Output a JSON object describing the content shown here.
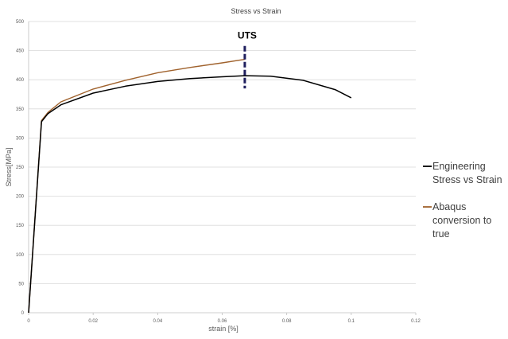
{
  "chart_data": {
    "type": "line",
    "title": "Stress vs Strain",
    "xlabel": "strain [%]",
    "ylabel": "Stress[MPa]",
    "xlim": [
      0,
      0.12
    ],
    "ylim": [
      0,
      500
    ],
    "xticks": [
      "0",
      "0.02",
      "0.04",
      "0.06",
      "0.08",
      "0.1",
      "0.12"
    ],
    "yticks": [
      "0",
      "50",
      "100",
      "150",
      "200",
      "250",
      "300",
      "350",
      "400",
      "450",
      "500"
    ],
    "grid": "horizontal",
    "legend_position": "right",
    "series": [
      {
        "name": "Engineering Stress vs Strain",
        "legend_lines": [
          "Engineering",
          "Stress vs Strain"
        ],
        "color": "#000000",
        "x": [
          0,
          0.004,
          0.006,
          0.01,
          0.02,
          0.03,
          0.04,
          0.05,
          0.06,
          0.067,
          0.075,
          0.085,
          0.095,
          0.1
        ],
        "y": [
          0,
          328,
          342,
          357,
          377,
          389,
          397,
          402,
          405,
          407,
          406,
          399,
          383,
          369
        ]
      },
      {
        "name": "Abaqus conversion to true",
        "legend_lines": [
          "Abaqus",
          "conversion to",
          "true"
        ],
        "color": "#A0622D",
        "x": [
          0,
          0.004,
          0.006,
          0.01,
          0.02,
          0.03,
          0.04,
          0.05,
          0.06,
          0.067
        ],
        "y": [
          0,
          330,
          344,
          362,
          384,
          399,
          412,
          421,
          429,
          435
        ]
      }
    ],
    "annotations": [
      {
        "text": "UTS",
        "x": 0.067,
        "y_from": 385,
        "y_to": 458,
        "line_color": "#1f1f5e",
        "line_style": "dashed"
      }
    ]
  }
}
